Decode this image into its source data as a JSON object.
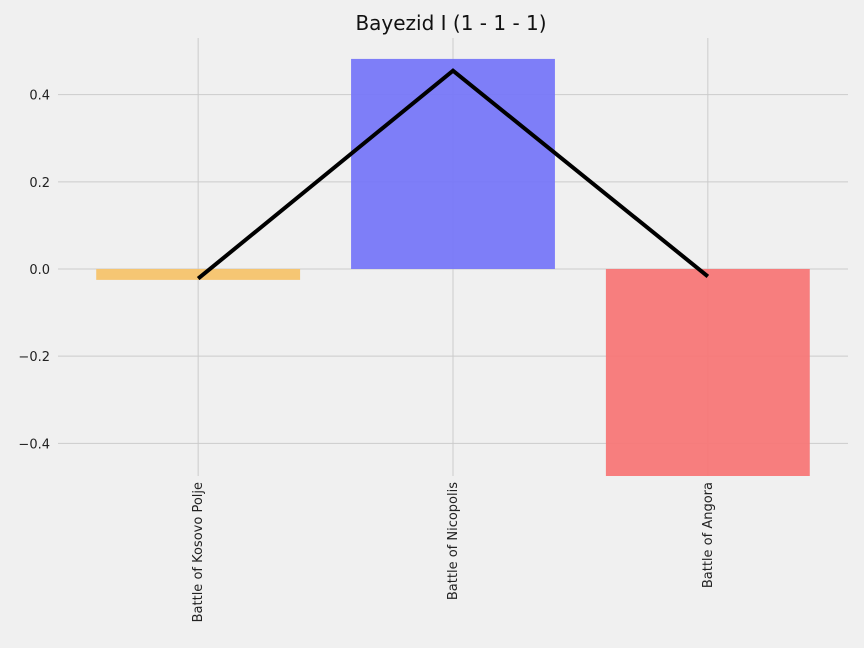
{
  "chart_data": {
    "type": "bar",
    "title": "Bayezid I (1 - 1 - 1)",
    "xlabel": "",
    "ylabel": "",
    "categories": [
      "Battle of Kosovo Polje",
      "Battle of Nicopolis",
      "Battle of Angora"
    ],
    "values": [
      -0.025,
      0.482,
      -0.475
    ],
    "bar_colors": [
      "#f5c36b",
      "#7777f8",
      "#f77777"
    ],
    "line": {
      "values": [
        -0.022,
        0.455,
        -0.017
      ],
      "color": "#000000"
    },
    "ylim": [
      -0.475,
      0.53
    ],
    "yticks": [
      -0.4,
      -0.2,
      0.0,
      0.2,
      0.4
    ],
    "ytick_labels": [
      "−0.4",
      "−0.2",
      "0.0",
      "0.2",
      "0.4"
    ],
    "grid": true,
    "background": "#f0f0f0"
  }
}
